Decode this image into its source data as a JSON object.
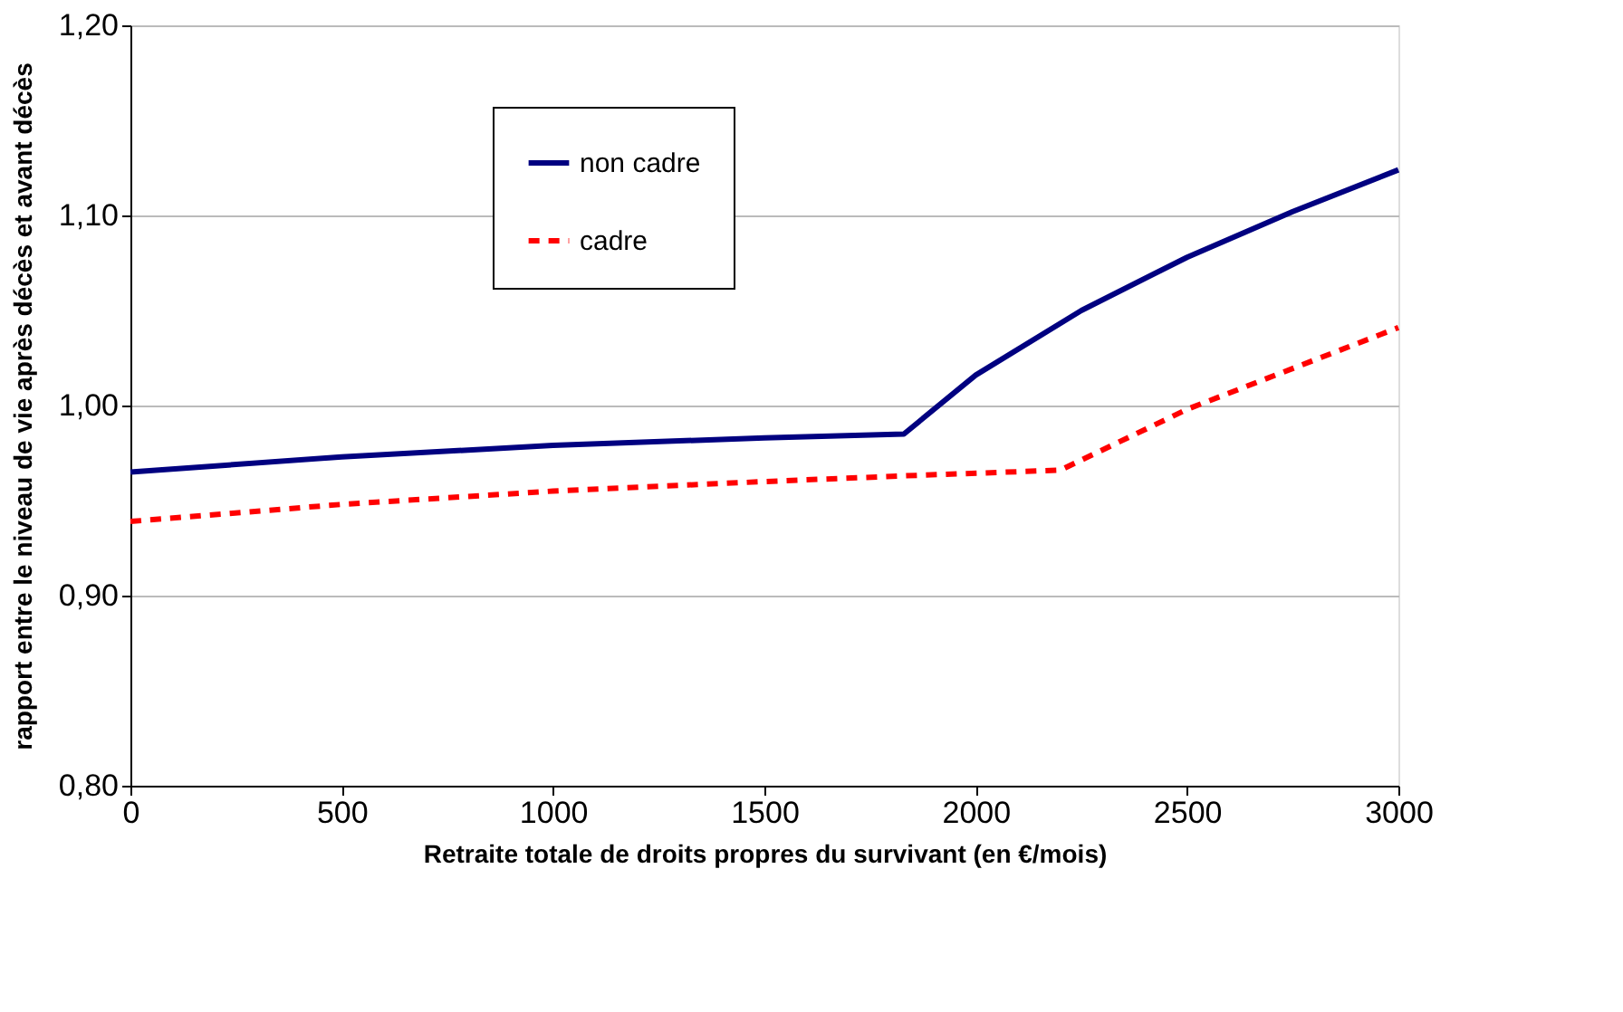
{
  "chart_data": {
    "type": "line",
    "xlabel": "Retraite totale de droits propres du survivant (en €/mois)",
    "ylabel": "rapport entre le niveau de vie après décès et avant décès",
    "xlim": [
      0,
      3000
    ],
    "xticks": [
      0,
      500,
      1000,
      1500,
      2000,
      2500,
      3000
    ],
    "ylim": [
      0.8,
      1.2
    ],
    "yticks": [
      {
        "value": 0.8,
        "label": "0,80"
      },
      {
        "value": 0.9,
        "label": "0,90"
      },
      {
        "value": 1.0,
        "label": "1,00"
      },
      {
        "value": 1.1,
        "label": "1,10"
      },
      {
        "value": 1.2,
        "label": "1,20"
      }
    ],
    "grid": "y",
    "legend": "top",
    "marker": "none",
    "series": [
      {
        "name": "non cadre",
        "color": "#000080",
        "line_style": "solid",
        "x": [
          0,
          500,
          1000,
          1500,
          1830,
          2000,
          2250,
          2500,
          2750,
          3000
        ],
        "values": [
          0.965,
          0.973,
          0.979,
          0.983,
          0.985,
          1.016,
          1.05,
          1.078,
          1.102,
          1.124
        ]
      },
      {
        "name": "cadre",
        "color": "#ff0000",
        "line_style": "dashed",
        "x": [
          0,
          500,
          1000,
          1500,
          1830,
          2200,
          2500,
          3000
        ],
        "values": [
          0.939,
          0.948,
          0.955,
          0.96,
          0.963,
          0.966,
          0.998,
          1.041
        ]
      }
    ]
  }
}
